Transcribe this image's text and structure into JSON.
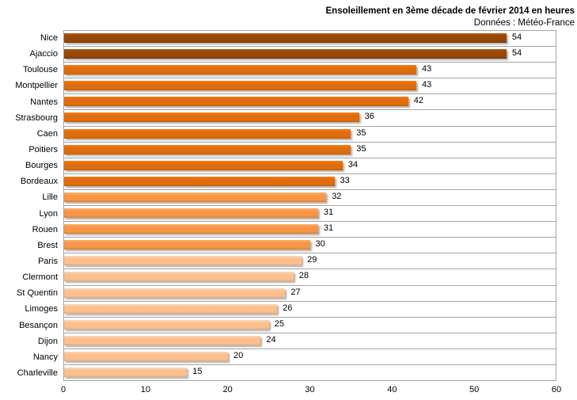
{
  "chart_data": {
    "type": "bar",
    "orientation": "horizontal",
    "title": "Ensoleillement en 3ème décade de février 2014 en heures",
    "subtitle": "Données : Météo-France",
    "categories": [
      "Nice",
      "Ajaccio",
      "Toulouse",
      "Montpellier",
      "Nantes",
      "Strasbourg",
      "Caen",
      "Poitiers",
      "Bourges",
      "Bordeaux",
      "Lille",
      "Lyon",
      "Rouen",
      "Brest",
      "Paris",
      "Clermont",
      "St Quentin",
      "Limoges",
      "Besançon",
      "Dijon",
      "Nancy",
      "Charleville"
    ],
    "values": [
      54,
      54,
      43,
      43,
      42,
      36,
      35,
      35,
      34,
      33,
      32,
      31,
      31,
      30,
      29,
      28,
      27,
      26,
      25,
      24,
      20,
      15
    ],
    "bar_color_groups": [
      "darkest",
      "darkest",
      "dark",
      "dark",
      "dark",
      "dark",
      "dark",
      "dark",
      "dark",
      "dark",
      "medium",
      "medium",
      "medium",
      "medium",
      "light",
      "light",
      "light",
      "light",
      "light",
      "light",
      "light",
      "light"
    ],
    "palette": {
      "darkest": {
        "base": "#974807",
        "top": "#b05a14",
        "bottom": "#7a3a06"
      },
      "dark": {
        "base": "#E36C0A",
        "top": "#f08025",
        "bottom": "#c45d08"
      },
      "medium": {
        "base": "#F79646",
        "top": "#fbb070",
        "bottom": "#e07f2e"
      },
      "light": {
        "base": "#FAC090",
        "top": "#fdd8b5",
        "bottom": "#edab74"
      }
    },
    "xlim": [
      0,
      60
    ],
    "x_ticks": [
      "0",
      "10",
      "20",
      "30",
      "40",
      "50",
      "60"
    ],
    "value_labels": true,
    "grid": "category-separator-lines",
    "grid_color": "#A6A6A6",
    "text_color": "#000000",
    "background": "#FFFFFF",
    "legend": "none"
  }
}
